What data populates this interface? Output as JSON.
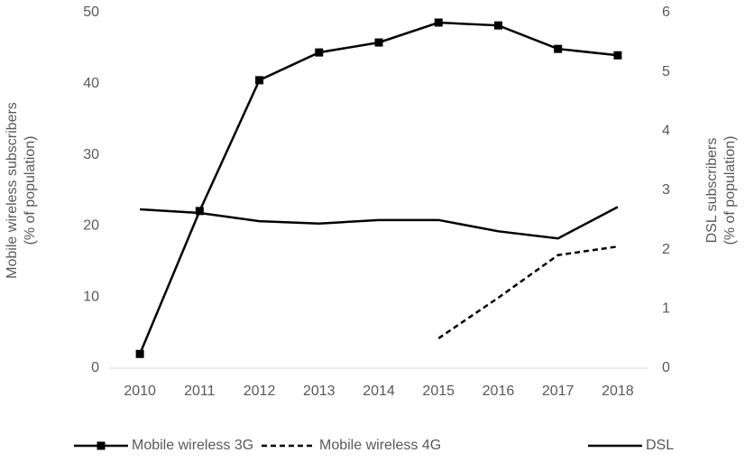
{
  "chart_data": {
    "type": "line",
    "categories": [
      "2010",
      "2011",
      "2012",
      "2013",
      "2014",
      "2015",
      "2016",
      "2017",
      "2018"
    ],
    "y_label": "Mobile wireless subscribers\n(% of population)",
    "y2_label": "DSL subscribers\n(% of population)",
    "ylim": [
      0,
      50
    ],
    "yticks": [
      0,
      10,
      20,
      30,
      40,
      50
    ],
    "y2lim": [
      0,
      6
    ],
    "y2ticks": [
      0,
      1,
      2,
      3,
      4,
      5,
      6
    ],
    "grid": false,
    "legend": "bottom",
    "series": [
      {
        "name": "Mobile wireless 3G",
        "color": "#000000",
        "marker": "square",
        "dash": "solid",
        "values": [
          2.0,
          22.1,
          40.5,
          44.4,
          45.8,
          48.6,
          48.2,
          44.9,
          44.0
        ]
      },
      {
        "name": "Mobile wireless 4G",
        "color": "#000000",
        "marker": "none",
        "dash": "dashed",
        "values": [
          null,
          null,
          null,
          null,
          null,
          4.2,
          9.9,
          15.9,
          17.1
        ]
      },
      {
        "name": "DSL",
        "color": "#000000",
        "marker": "none",
        "dash": "solid",
        "axis": "y2",
        "values": [
          2.68,
          2.62,
          2.48,
          2.44,
          2.5,
          2.5,
          2.31,
          2.19,
          2.72
        ]
      }
    ]
  }
}
